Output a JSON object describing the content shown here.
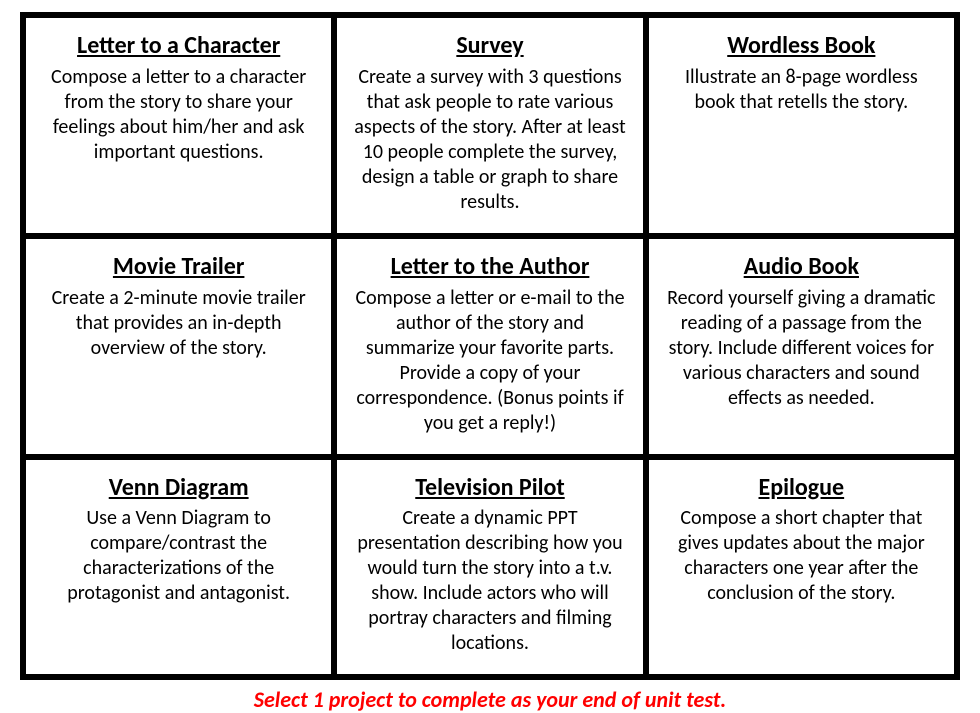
{
  "grid": {
    "type": "table",
    "columns": 3,
    "rows": 3,
    "border_color": "#000000",
    "border_width": 3,
    "background_color": "#ffffff",
    "title_fontsize": 24,
    "title_weight": "bold",
    "title_underline": true,
    "desc_fontsize": 20,
    "text_color": "#000000",
    "cells": [
      {
        "title": "Letter to a Character",
        "desc": "Compose a letter to a character from the story to share your feelings about him/her and ask important questions."
      },
      {
        "title": "Survey",
        "desc": "Create a survey with 3 questions that ask people to rate various aspects of the story.  After at least 10 people complete the survey, design a table or graph to share results."
      },
      {
        "title": "Wordless Book",
        "desc": "Illustrate an 8-page wordless book that retells the story."
      },
      {
        "title": "Movie Trailer",
        "desc": "Create a 2-minute movie trailer that provides an in-depth overview of the story."
      },
      {
        "title": "Letter to the Author",
        "desc": "Compose a letter or e-mail to the author of the story and summarize your favorite parts.  Provide a copy of your correspondence.  (Bonus points if you get a reply!)"
      },
      {
        "title": "Audio Book",
        "desc": "Record yourself giving a dramatic reading of a passage from the story.  Include different voices for various characters and sound effects as needed."
      },
      {
        "title": "Venn Diagram",
        "desc": "Use a Venn Diagram to compare/contrast the characterizations of the protagonist and antagonist."
      },
      {
        "title": "Television Pilot",
        "desc": "Create a dynamic PPT presentation describing how you would turn the story into a t.v. show.  Include actors who will portray characters and filming locations."
      },
      {
        "title": "Epilogue",
        "desc": "Compose a short chapter that gives updates about the major characters one year after the conclusion of the story."
      }
    ]
  },
  "footer": {
    "text": "Select 1 project to complete as your end of unit test.",
    "color": "#ff0000",
    "bold": true,
    "italic": true,
    "fontsize": 22
  }
}
